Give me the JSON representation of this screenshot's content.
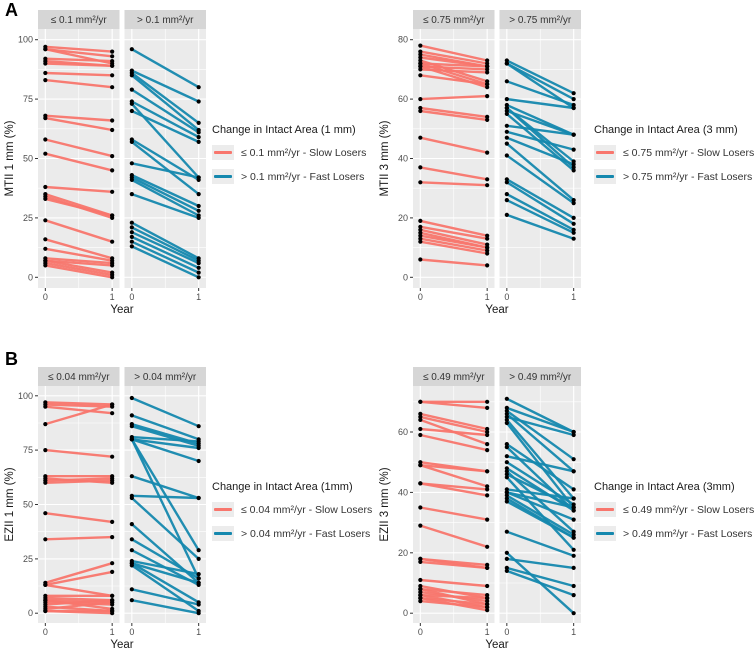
{
  "colors": {
    "slow": "#F8766D",
    "fast": "#1588AE",
    "panel_bg": "#EBEBEB",
    "strip_bg": "#D6D6D6",
    "grid": "#FFFFFF",
    "point": "#000000",
    "axis_text": "#4D4D4D",
    "text": "#1A1A1A"
  },
  "chart_data": [
    {
      "panel_label": "A",
      "type": "line",
      "ylabel": "MTII 1 mm (%)",
      "xlabel": "Year",
      "x": [
        0,
        1
      ],
      "xticks": [
        0,
        1
      ],
      "ylim": [
        0,
        100
      ],
      "yticks": [
        0,
        25,
        50,
        75,
        100
      ],
      "grid": true,
      "legend_position": "right",
      "facets": [
        {
          "label": "≤ 0.1 mm²/yr",
          "series": "≤ 0.1 mm²/yr - Slow Losers",
          "color": "#F8766D",
          "lines": [
            [
              97,
              95
            ],
            [
              96,
              93
            ],
            [
              96,
              90
            ],
            [
              92,
              91
            ],
            [
              91,
              89
            ],
            [
              90,
              89
            ],
            [
              86,
              85
            ],
            [
              83,
              80
            ],
            [
              68,
              66
            ],
            [
              67,
              62
            ],
            [
              58,
              51
            ],
            [
              52,
              45
            ],
            [
              38,
              36
            ],
            [
              35,
              26
            ],
            [
              34,
              25
            ],
            [
              33,
              26
            ],
            [
              24,
              15
            ],
            [
              16,
              8
            ],
            [
              12,
              7
            ],
            [
              8,
              6
            ],
            [
              7,
              5
            ],
            [
              7,
              2
            ],
            [
              6,
              1
            ],
            [
              5,
              0
            ]
          ]
        },
        {
          "label": "> 0.1 mm²/yr",
          "series": "> 0.1 mm²/yr - Fast Losers",
          "color": "#1588AE",
          "lines": [
            [
              96,
              80
            ],
            [
              87,
              74
            ],
            [
              86,
              65
            ],
            [
              85,
              62
            ],
            [
              79,
              61
            ],
            [
              74,
              59
            ],
            [
              73,
              42
            ],
            [
              70,
              57
            ],
            [
              58,
              41
            ],
            [
              57,
              35
            ],
            [
              48,
              42
            ],
            [
              43,
              30
            ],
            [
              42,
              28
            ],
            [
              41,
              26
            ],
            [
              35,
              25
            ],
            [
              23,
              8
            ],
            [
              21,
              7
            ],
            [
              19,
              6
            ],
            [
              17,
              4
            ],
            [
              15,
              2
            ],
            [
              13,
              0
            ]
          ]
        }
      ],
      "legend": {
        "title": "Change in Intact Area (1 mm)",
        "entries": [
          {
            "label": "≤ 0.1 mm²/yr - Slow Losers",
            "color": "#F8766D"
          },
          {
            "label": "> 0.1 mm²/yr - Fast Losers",
            "color": "#1588AE"
          }
        ]
      }
    },
    {
      "type": "line",
      "ylabel": "MTII 3 mm (%)",
      "xlabel": "Year",
      "x": [
        0,
        1
      ],
      "xticks": [
        0,
        1
      ],
      "ylim": [
        0,
        80
      ],
      "yticks": [
        0,
        20,
        40,
        60,
        80
      ],
      "grid": true,
      "legend_position": "right",
      "facets": [
        {
          "label": "≤ 0.75 mm²/yr",
          "series": "≤ 0.75 mm²/yr - Slow Losers",
          "color": "#F8766D",
          "lines": [
            [
              78,
              73
            ],
            [
              76,
              72
            ],
            [
              75,
              71
            ],
            [
              74,
              71
            ],
            [
              73,
              66
            ],
            [
              72,
              71
            ],
            [
              72,
              65
            ],
            [
              71,
              70
            ],
            [
              71,
              64
            ],
            [
              70,
              69
            ],
            [
              68,
              65
            ],
            [
              60,
              61
            ],
            [
              57,
              54
            ],
            [
              56,
              53
            ],
            [
              47,
              42
            ],
            [
              37,
              33
            ],
            [
              32,
              31
            ],
            [
              19,
              14
            ],
            [
              17,
              13
            ],
            [
              16,
              11
            ],
            [
              15,
              10
            ],
            [
              14,
              10
            ],
            [
              13,
              9
            ],
            [
              12,
              8
            ],
            [
              6,
              4
            ]
          ]
        },
        {
          "label": "> 0.75 mm²/yr",
          "series": "> 0.75 mm²/yr - Fast Losers",
          "color": "#1588AE",
          "lines": [
            [
              73,
              62
            ],
            [
              72,
              60
            ],
            [
              72,
              57
            ],
            [
              66,
              58
            ],
            [
              60,
              57
            ],
            [
              58,
              48
            ],
            [
              57,
              39
            ],
            [
              57,
              37
            ],
            [
              56,
              48
            ],
            [
              55,
              36
            ],
            [
              51,
              48
            ],
            [
              49,
              43
            ],
            [
              47,
              38
            ],
            [
              45,
              26
            ],
            [
              41,
              25
            ],
            [
              33,
              20
            ],
            [
              32,
              18
            ],
            [
              28,
              16
            ],
            [
              26,
              15
            ],
            [
              21,
              13
            ]
          ]
        }
      ],
      "legend": {
        "title": "Change in Intact Area (3 mm)",
        "entries": [
          {
            "label": "≤ 0.75 mm²/yr - Slow Losers",
            "color": "#F8766D"
          },
          {
            "label": "> 0.75 mm²/yr - Fast Losers",
            "color": "#1588AE"
          }
        ]
      }
    },
    {
      "panel_label": "B",
      "type": "line",
      "ylabel": "EZII 1 mm (%)",
      "xlabel": "Year",
      "x": [
        0,
        1
      ],
      "xticks": [
        0,
        1
      ],
      "ylim": [
        0,
        100
      ],
      "yticks": [
        0,
        25,
        50,
        75,
        100
      ],
      "grid": true,
      "legend_position": "right",
      "facets": [
        {
          "label": "≤ 0.04 mm²/yr",
          "series": "≤ 0.04 mm²/yr - Slow Losers",
          "color": "#F8766D",
          "lines": [
            [
              97,
              96
            ],
            [
              96,
              95
            ],
            [
              95,
              92
            ],
            [
              87,
              96
            ],
            [
              75,
              72
            ],
            [
              63,
              63
            ],
            [
              62,
              60
            ],
            [
              61,
              62
            ],
            [
              60,
              61
            ],
            [
              46,
              42
            ],
            [
              34,
              35
            ],
            [
              14,
              23
            ],
            [
              13,
              19
            ],
            [
              13,
              8
            ],
            [
              8,
              8
            ],
            [
              7,
              6
            ],
            [
              6,
              5
            ],
            [
              6,
              2
            ],
            [
              5,
              4
            ],
            [
              4,
              6
            ],
            [
              3,
              1
            ],
            [
              2,
              5
            ],
            [
              1,
              0
            ],
            [
              1,
              1
            ]
          ]
        },
        {
          "label": "> 0.04 mm²/yr",
          "series": "> 0.04 mm²/yr - Fast Losers",
          "color": "#1588AE",
          "lines": [
            [
              99,
              86
            ],
            [
              91,
              80
            ],
            [
              87,
              78
            ],
            [
              86,
              77
            ],
            [
              81,
              79
            ],
            [
              80,
              76
            ],
            [
              80,
              70
            ],
            [
              80,
              29
            ],
            [
              80,
              16
            ],
            [
              63,
              53
            ],
            [
              54,
              53
            ],
            [
              53,
              25
            ],
            [
              41,
              14
            ],
            [
              34,
              16
            ],
            [
              29,
              13
            ],
            [
              24,
              18
            ],
            [
              23,
              14
            ],
            [
              23,
              5
            ],
            [
              22,
              1
            ],
            [
              11,
              4
            ],
            [
              6,
              0
            ]
          ]
        }
      ],
      "legend": {
        "title": "Change in Intact Area (1mm)",
        "entries": [
          {
            "label": "≤ 0.04 mm²/yr - Slow Losers",
            "color": "#F8766D"
          },
          {
            "label": "> 0.04 mm²/yr - Fast Losers",
            "color": "#1588AE"
          }
        ]
      }
    },
    {
      "type": "line",
      "ylabel": "EZII 3 mm (%)",
      "xlabel": "Year",
      "x": [
        0,
        1
      ],
      "xticks": [
        0,
        1
      ],
      "ylim": [
        0,
        72
      ],
      "yticks": [
        0,
        20,
        40,
        60
      ],
      "grid": true,
      "legend_position": "right",
      "facets": [
        {
          "label": "≤ 0.49 mm²/yr",
          "series": "≤ 0.49 mm²/yr - Slow Losers",
          "color": "#F8766D",
          "lines": [
            [
              70,
              70
            ],
            [
              70,
              68
            ],
            [
              66,
              61
            ],
            [
              65,
              60
            ],
            [
              64,
              56
            ],
            [
              61,
              59
            ],
            [
              59,
              54
            ],
            [
              50,
              47
            ],
            [
              49,
              47
            ],
            [
              49,
              42
            ],
            [
              43,
              41
            ],
            [
              43,
              39
            ],
            [
              35,
              31
            ],
            [
              29,
              22
            ],
            [
              18,
              16
            ],
            [
              18,
              15
            ],
            [
              17,
              15
            ],
            [
              11,
              9
            ],
            [
              9,
              5
            ],
            [
              8,
              6
            ],
            [
              8,
              3
            ],
            [
              7,
              4
            ],
            [
              6,
              5
            ],
            [
              6,
              2
            ],
            [
              5,
              3
            ],
            [
              5,
              1
            ],
            [
              4,
              2
            ]
          ]
        },
        {
          "label": "> 0.49 mm²/yr",
          "series": "> 0.49 mm²/yr - Fast Losers",
          "color": "#1588AE",
          "lines": [
            [
              71,
              60
            ],
            [
              68,
              60
            ],
            [
              67,
              51
            ],
            [
              66,
              47
            ],
            [
              65,
              59
            ],
            [
              64,
              38
            ],
            [
              63,
              35
            ],
            [
              56,
              41
            ],
            [
              55,
              34
            ],
            [
              52,
              47
            ],
            [
              50,
              36
            ],
            [
              48,
              34
            ],
            [
              47,
              27
            ],
            [
              46,
              35
            ],
            [
              45,
              21
            ],
            [
              41,
              38
            ],
            [
              40,
              35
            ],
            [
              40,
              31
            ],
            [
              39,
              26
            ],
            [
              38,
              25
            ],
            [
              37,
              25
            ],
            [
              27,
              19
            ],
            [
              20,
              0
            ],
            [
              18,
              15
            ],
            [
              15,
              9
            ],
            [
              14,
              6
            ]
          ]
        }
      ],
      "legend": {
        "title": "Change in Intact Area (3mm)",
        "entries": [
          {
            "label": "≤ 0.49 mm²/yr - Slow Losers",
            "color": "#F8766D"
          },
          {
            "label": "> 0.49 mm²/yr - Fast Losers",
            "color": "#1588AE"
          }
        ]
      }
    }
  ]
}
